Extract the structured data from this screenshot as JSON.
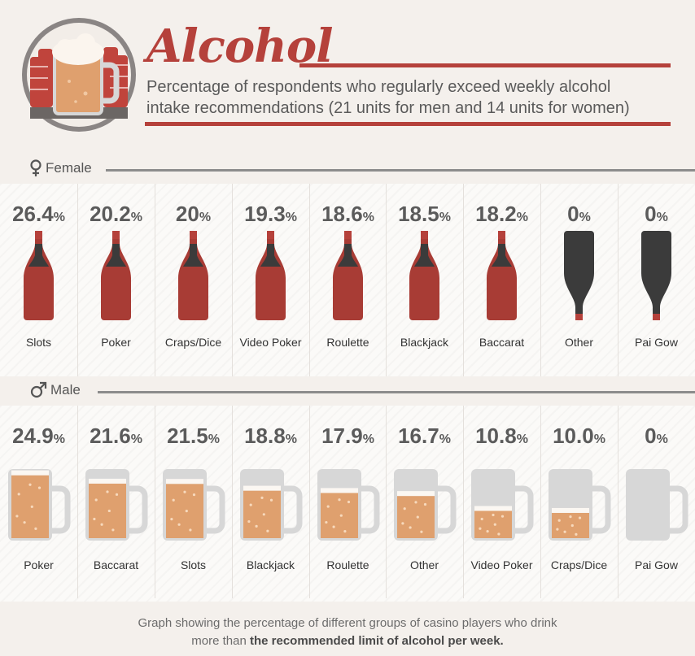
{
  "header": {
    "title": "Alcohol",
    "subtitle_line1": "Percentage of respondents who regularly exceed weekly alcohol",
    "subtitle_line2": "intake recommendations (21 units for men and 14 units for women)"
  },
  "sections": {
    "female_label": "Female",
    "male_label": "Male"
  },
  "colors": {
    "accent": "#b5413b",
    "wine": "#a83c35",
    "bottle_dark": "#3b3b3b",
    "beer": "#dfa06e",
    "mug": "#d7d7d7"
  },
  "chart_data": [
    {
      "type": "bar",
      "categories": [
        "Slots",
        "Poker",
        "Craps/Dice",
        "Video Poker",
        "Roulette",
        "Blackjack",
        "Baccarat",
        "Other",
        "Pai Gow"
      ],
      "labels": [
        "26.4",
        "20.2",
        "20",
        "19.3",
        "18.6",
        "18.5",
        "18.2",
        "0",
        "0"
      ],
      "values": [
        26.4,
        20.2,
        20,
        19.3,
        18.6,
        18.5,
        18.2,
        0,
        0
      ],
      "unit": "%"
    },
    {
      "type": "bar",
      "categories": [
        "Poker",
        "Baccarat",
        "Slots",
        "Blackjack",
        "Roulette",
        "Other",
        "Video Poker",
        "Craps/Dice",
        "Pai Gow"
      ],
      "labels": [
        "24.9",
        "21.6",
        "21.5",
        "18.8",
        "17.9",
        "16.7",
        "10.8",
        "10.0",
        "0"
      ],
      "values": [
        24.9,
        21.6,
        21.5,
        18.8,
        17.9,
        16.7,
        10.8,
        10.0,
        0
      ],
      "unit": "%"
    }
  ],
  "footer": {
    "caption_part1": "Graph showing the percentage of different groups of casino players who drink",
    "caption_part2": "more than",
    "caption_bold": "the recommended limit of alcohol per week."
  }
}
